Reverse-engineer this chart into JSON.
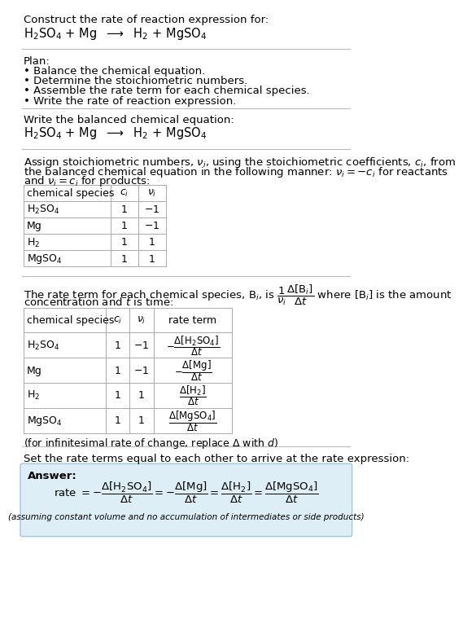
{
  "bg_color": "#ffffff",
  "text_color": "#000000",
  "answer_bg": "#deeef6",
  "answer_border": "#a0c8dc",
  "title_text": "Construct the rate of reaction expression for:",
  "reaction_eq": "H$_2$SO$_4$ + Mg  $\\longrightarrow$  H$_2$ + MgSO$_4$",
  "plan_header": "Plan:",
  "plan_items": [
    "• Balance the chemical equation.",
    "• Determine the stoichiometric numbers.",
    "• Assemble the rate term for each chemical species.",
    "• Write the rate of reaction expression."
  ],
  "balanced_header": "Write the balanced chemical equation:",
  "balanced_eq": "H$_2$SO$_4$ + Mg  $\\longrightarrow$  H$_2$ + MgSO$_4$",
  "assign_text1": "Assign stoichiometric numbers, $\\nu_i$, using the stoichiometric coefficients, $c_i$, from",
  "assign_text2": "the balanced chemical equation in the following manner: $\\nu_i = -c_i$ for reactants",
  "assign_text3": "and $\\nu_i = c_i$ for products:",
  "table1_headers": [
    "chemical species",
    "$c_i$",
    "$\\nu_i$"
  ],
  "table1_rows": [
    [
      "H$_2$SO$_4$",
      "1",
      "$-1$"
    ],
    [
      "Mg",
      "1",
      "$-1$"
    ],
    [
      "H$_2$",
      "1",
      "1"
    ],
    [
      "MgSO$_4$",
      "1",
      "1"
    ]
  ],
  "rate_text1": "The rate term for each chemical species, B$_i$, is $\\dfrac{1}{\\nu_i}\\dfrac{\\Delta[\\mathrm{B}_i]}{\\Delta t}$ where [B$_i$] is the amount",
  "rate_text2": "concentration and $t$ is time:",
  "table2_headers": [
    "chemical species",
    "$c_i$",
    "$\\nu_i$",
    "rate term"
  ],
  "table2_rows": [
    [
      "H$_2$SO$_4$",
      "1",
      "$-1$",
      "$-\\dfrac{\\Delta[\\mathrm{H_2SO_4}]}{\\Delta t}$"
    ],
    [
      "Mg",
      "1",
      "$-1$",
      "$-\\dfrac{\\Delta[\\mathrm{Mg}]}{\\Delta t}$"
    ],
    [
      "H$_2$",
      "1",
      "1",
      "$\\dfrac{\\Delta[\\mathrm{H_2}]}{\\Delta t}$"
    ],
    [
      "MgSO$_4$",
      "1",
      "1",
      "$\\dfrac{\\Delta[\\mathrm{MgSO_4}]}{\\Delta t}$"
    ]
  ],
  "infinitesimal_note": "(for infinitesimal rate of change, replace $\\Delta$ with $d$)",
  "set_rate_text": "Set the rate terms equal to each other to arrive at the rate expression:",
  "answer_label": "Answer:",
  "rate_expression": "rate $= -\\dfrac{\\Delta[\\mathrm{H_2SO_4}]}{\\Delta t} = -\\dfrac{\\Delta[\\mathrm{Mg}]}{\\Delta t} = \\dfrac{\\Delta[\\mathrm{H_2}]}{\\Delta t} = \\dfrac{\\Delta[\\mathrm{MgSO_4}]}{\\Delta t}$",
  "assuming_note": "(assuming constant volume and no accumulation of intermediates or side products)"
}
